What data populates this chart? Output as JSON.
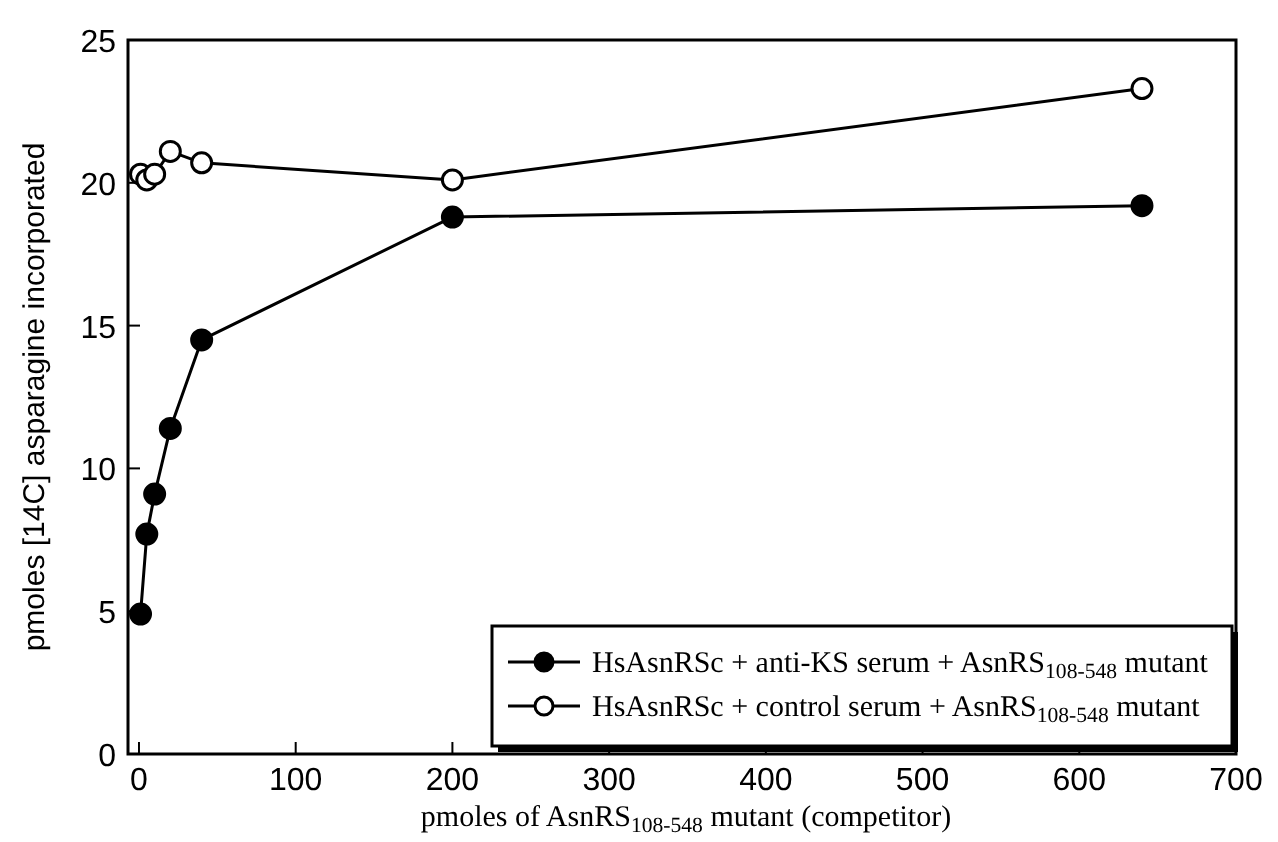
{
  "chart_data": {
    "type": "line",
    "xlabel": "pmoles of  AsnRS$_{108-548}$ mutant (competitor)",
    "ylabel": "pmoles [14C] asparagine incorporated",
    "x": [
      1,
      5,
      10,
      20,
      40,
      200,
      640
    ],
    "series": [
      {
        "name": "HsAsnRSc + anti-KS serum + AsnRS$_{108-548}$ mutant",
        "color": "#000000",
        "values": [
          4.9,
          7.7,
          9.1,
          11.4,
          14.5,
          18.8,
          19.2
        ],
        "marker": "circle"
      },
      {
        "name": "HsAsnRSc + control serum + AsnRS$_{108-548}$ mutant",
        "color": "#000000",
        "values": [
          20.3,
          20.1,
          20.3,
          21.1,
          20.7,
          20.1,
          23.3
        ],
        "marker": "circle"
      }
    ],
    "xlim": [
      -7,
      700
    ],
    "xticks": [
      0,
      100,
      200,
      300,
      400,
      500,
      600,
      700
    ],
    "ylim": [
      0,
      25
    ],
    "yticks": [
      0,
      5,
      10,
      15,
      20,
      25
    ],
    "legend": "bottom right",
    "grid": false,
    "line_style": "solid"
  }
}
